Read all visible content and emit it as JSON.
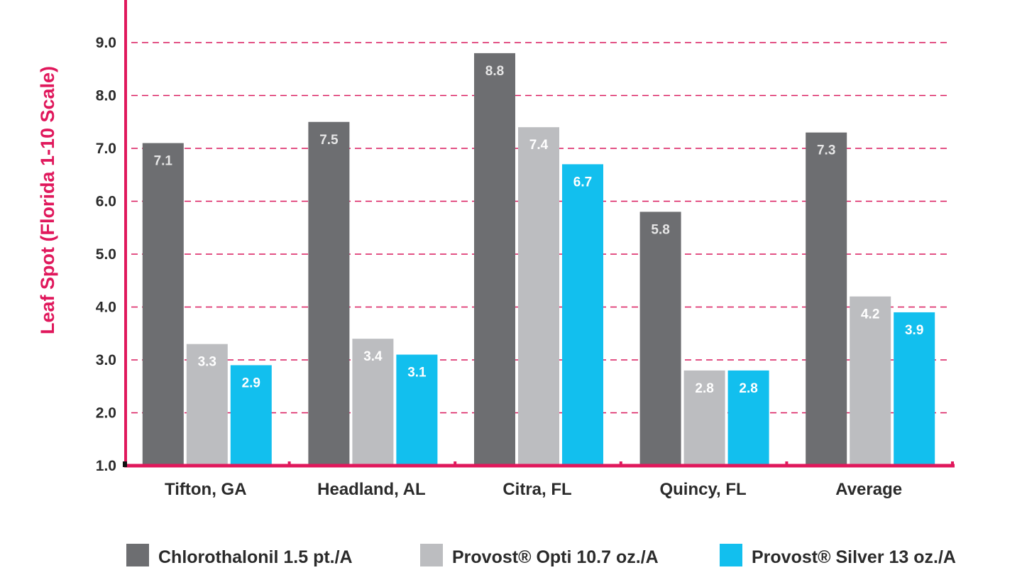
{
  "chart_data": {
    "type": "bar",
    "title": "",
    "xlabel": "",
    "ylabel": "Leaf Spot (Florida 1-10 Scale)",
    "ylim": [
      1.0,
      9.0
    ],
    "yticks": [
      "1.0",
      "2.0",
      "3.0",
      "4.0",
      "5.0",
      "6.0",
      "7.0",
      "8.0",
      "9.0"
    ],
    "grid": "horizontal dashed",
    "legend_position": "bottom",
    "categories": [
      "Tifton, GA",
      "Headland, AL",
      "Citra, FL",
      "Quincy, FL",
      "Average"
    ],
    "series": [
      {
        "name": "Chlorothalonil 1.5 pt./A",
        "values": [
          7.1,
          7.5,
          8.8,
          5.8,
          7.3
        ],
        "labels": [
          "7.1",
          "7.5",
          "8.8",
          "5.8",
          "7.3"
        ],
        "color": "#6d6e71"
      },
      {
        "name": "Provost® Opti 10.7 oz./A",
        "values": [
          3.3,
          3.4,
          7.4,
          2.8,
          4.2
        ],
        "labels": [
          "3.3",
          "3.4",
          "7.4",
          "2.8",
          "4.2"
        ],
        "color": "#bcbdc0"
      },
      {
        "name": "Provost® Silver 13 oz./A",
        "values": [
          2.9,
          3.1,
          6.7,
          2.8,
          3.9
        ],
        "labels": [
          "2.9",
          "3.1",
          "6.7",
          "2.8",
          "3.9"
        ],
        "color": "#12bfee"
      }
    ],
    "colors": {
      "axis": "#e0185c",
      "grid": "#d9195d",
      "bar_label_dark": "#e6e6e6",
      "bar_label_light": "#ffffff"
    }
  }
}
